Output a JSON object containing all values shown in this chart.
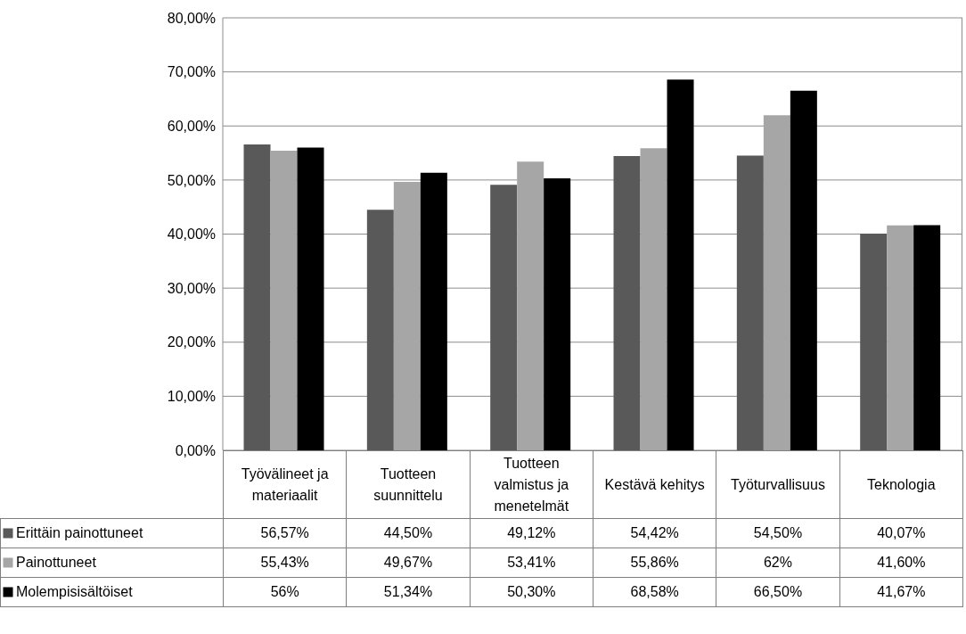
{
  "chart_data": {
    "type": "bar",
    "categories": [
      "Työvälineet ja materiaalit",
      "Tuotteen suunnittelu",
      "Tuotteen valmistus ja menetelmät",
      "Kestävä kehitys",
      "Työturvallisuus",
      "Teknologia"
    ],
    "series": [
      {
        "name": "Erittäin painottuneet",
        "color": "#595959",
        "values": [
          56.57,
          44.5,
          49.12,
          54.42,
          54.5,
          40.07
        ],
        "value_labels": [
          "56,57%",
          "44,50%",
          "49,12%",
          "54,42%",
          "54,50%",
          "40,07%"
        ]
      },
      {
        "name": "Painottuneet",
        "color": "#a6a6a6",
        "values": [
          55.43,
          49.67,
          53.41,
          55.86,
          62,
          41.6
        ],
        "value_labels": [
          "55,43%",
          "49,67%",
          "53,41%",
          "55,86%",
          "62%",
          "41,60%"
        ]
      },
      {
        "name": "Molempisisältöiset",
        "color": "#000000",
        "values": [
          56,
          51.34,
          50.3,
          68.58,
          66.5,
          41.67
        ],
        "value_labels": [
          "56%",
          "51,34%",
          "50,30%",
          "68,58%",
          "66,50%",
          "41,67%"
        ]
      }
    ],
    "ylim": [
      0,
      80
    ],
    "yticks": [
      {
        "value": 0,
        "label": "0,00%"
      },
      {
        "value": 10,
        "label": "10,00%"
      },
      {
        "value": 20,
        "label": "20,00%"
      },
      {
        "value": 30,
        "label": "30,00%"
      },
      {
        "value": 40,
        "label": "40,00%"
      },
      {
        "value": 50,
        "label": "50,00%"
      },
      {
        "value": 60,
        "label": "60,00%"
      },
      {
        "value": 70,
        "label": "70,00%"
      },
      {
        "value": 80,
        "label": "80,00%"
      }
    ],
    "grid": "y",
    "legend": "bottom"
  }
}
